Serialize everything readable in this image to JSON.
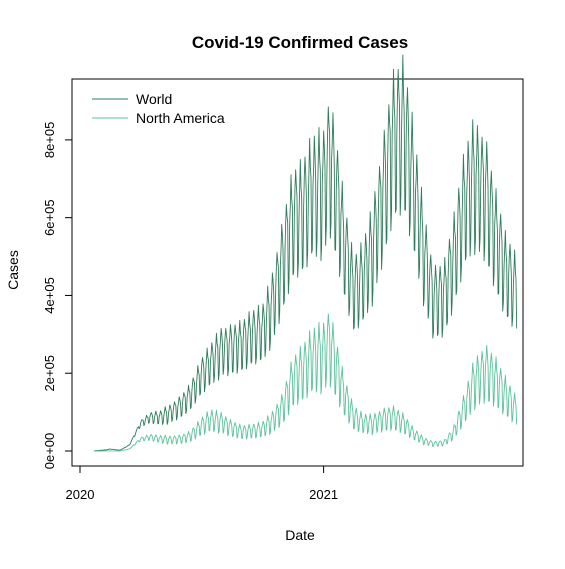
{
  "chart_data": {
    "type": "line",
    "title": "Covid-19 Confirmed Cases",
    "xlabel": "Date",
    "ylabel": "Cases",
    "xlim": [
      "2020-01-01",
      "2021-10-20"
    ],
    "ylim": [
      0,
      900000
    ],
    "x_ticks": [
      "2020",
      "2021"
    ],
    "x_tick_dates": [
      "2020-01-01",
      "2021-01-01"
    ],
    "y_ticks": [
      0,
      200000,
      400000,
      600000,
      800000
    ],
    "y_tick_labels": [
      "0e+00",
      "2e+05",
      "4e+05",
      "6e+05",
      "8e+05"
    ],
    "legend_position": "top-left",
    "legend_box": false,
    "grid": false,
    "series": [
      {
        "name": "World",
        "color": "#2f7d5c",
        "anchors": [
          [
            "2020-01-22",
            600
          ],
          [
            "2020-02-10",
            3000
          ],
          [
            "2020-02-15",
            5000
          ],
          [
            "2020-03-01",
            2000
          ],
          [
            "2020-03-15",
            15000
          ],
          [
            "2020-04-01",
            70000
          ],
          [
            "2020-04-15",
            85000
          ],
          [
            "2020-05-01",
            85000
          ],
          [
            "2020-05-15",
            95000
          ],
          [
            "2020-06-01",
            115000
          ],
          [
            "2020-06-15",
            140000
          ],
          [
            "2020-07-01",
            190000
          ],
          [
            "2020-07-15",
            220000
          ],
          [
            "2020-08-01",
            255000
          ],
          [
            "2020-08-15",
            260000
          ],
          [
            "2020-09-01",
            270000
          ],
          [
            "2020-09-15",
            290000
          ],
          [
            "2020-10-01",
            300000
          ],
          [
            "2020-10-15",
            360000
          ],
          [
            "2020-11-01",
            480000
          ],
          [
            "2020-11-15",
            580000
          ],
          [
            "2020-12-01",
            600000
          ],
          [
            "2020-12-15",
            650000
          ],
          [
            "2021-01-01",
            660000
          ],
          [
            "2021-01-10",
            740000
          ],
          [
            "2021-01-20",
            650000
          ],
          [
            "2021-02-01",
            520000
          ],
          [
            "2021-02-15",
            400000
          ],
          [
            "2021-03-01",
            430000
          ],
          [
            "2021-03-15",
            500000
          ],
          [
            "2021-04-01",
            650000
          ],
          [
            "2021-04-15",
            780000
          ],
          [
            "2021-05-01",
            810000
          ],
          [
            "2021-05-15",
            680000
          ],
          [
            "2021-06-01",
            490000
          ],
          [
            "2021-06-15",
            380000
          ],
          [
            "2021-07-01",
            390000
          ],
          [
            "2021-07-15",
            480000
          ],
          [
            "2021-08-01",
            620000
          ],
          [
            "2021-08-15",
            680000
          ],
          [
            "2021-09-01",
            650000
          ],
          [
            "2021-09-15",
            550000
          ],
          [
            "2021-10-01",
            450000
          ],
          [
            "2021-10-18",
            400000
          ]
        ]
      },
      {
        "name": "North America",
        "color": "#5cc39b",
        "anchors": [
          [
            "2020-01-22",
            0
          ],
          [
            "2020-03-01",
            100
          ],
          [
            "2020-03-15",
            5000
          ],
          [
            "2020-04-01",
            30000
          ],
          [
            "2020-04-15",
            35000
          ],
          [
            "2020-05-01",
            30000
          ],
          [
            "2020-05-15",
            28000
          ],
          [
            "2020-06-01",
            30000
          ],
          [
            "2020-06-15",
            38000
          ],
          [
            "2020-07-01",
            62000
          ],
          [
            "2020-07-15",
            78000
          ],
          [
            "2020-08-01",
            72000
          ],
          [
            "2020-08-15",
            58000
          ],
          [
            "2020-09-01",
            48000
          ],
          [
            "2020-09-15",
            50000
          ],
          [
            "2020-10-01",
            55000
          ],
          [
            "2020-10-15",
            72000
          ],
          [
            "2020-11-01",
            110000
          ],
          [
            "2020-11-15",
            175000
          ],
          [
            "2020-12-01",
            200000
          ],
          [
            "2020-12-15",
            230000
          ],
          [
            "2021-01-01",
            240000
          ],
          [
            "2021-01-10",
            270000
          ],
          [
            "2021-01-20",
            210000
          ],
          [
            "2021-02-01",
            140000
          ],
          [
            "2021-02-15",
            85000
          ],
          [
            "2021-03-01",
            70000
          ],
          [
            "2021-03-15",
            68000
          ],
          [
            "2021-04-01",
            80000
          ],
          [
            "2021-04-15",
            85000
          ],
          [
            "2021-05-01",
            70000
          ],
          [
            "2021-05-15",
            45000
          ],
          [
            "2021-06-01",
            25000
          ],
          [
            "2021-06-15",
            18000
          ],
          [
            "2021-07-01",
            20000
          ],
          [
            "2021-07-15",
            45000
          ],
          [
            "2021-08-01",
            110000
          ],
          [
            "2021-08-15",
            170000
          ],
          [
            "2021-09-01",
            200000
          ],
          [
            "2021-09-15",
            180000
          ],
          [
            "2021-10-01",
            140000
          ],
          [
            "2021-10-18",
            100000
          ]
        ]
      }
    ]
  }
}
